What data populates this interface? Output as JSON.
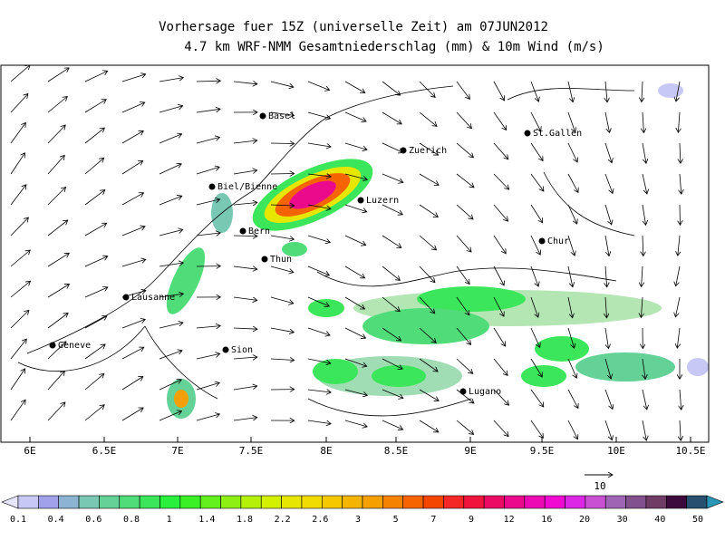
{
  "header": {
    "title": "Vorhersage fuer 15Z (universelle Zeit) am 07JUN2012",
    "subtitle": "4.7 km WRF-NMM Gesamtniederschlag (mm) & 10m Wind (m/s)"
  },
  "x_axis": {
    "labels": [
      "6E",
      "6.5E",
      "7E",
      "7.5E",
      "8E",
      "8.5E",
      "9E",
      "9.5E",
      "10E",
      "10.5E"
    ]
  },
  "cities": [
    {
      "label": "Basel"
    },
    {
      "label": "Zuerich"
    },
    {
      "label": "St.Gallen"
    },
    {
      "label": "Biel/Bienne"
    },
    {
      "label": "Luzern"
    },
    {
      "label": "Bern"
    },
    {
      "label": "Thun"
    },
    {
      "label": "Chur"
    },
    {
      "label": "Lausanne"
    },
    {
      "label": "Geneve"
    },
    {
      "label": "Sion"
    },
    {
      "label": "Lugano"
    }
  ],
  "wind_scale": {
    "label": "10"
  },
  "colorbar": {
    "labels": [
      "0.1",
      "0.4",
      "0.6",
      "0.8",
      "1",
      "1.4",
      "1.8",
      "2.2",
      "2.6",
      "3",
      "5",
      "7",
      "9",
      "12",
      "16",
      "20",
      "30",
      "40",
      "50"
    ],
    "colors": [
      "#e6e6fa",
      "#c8c8f5",
      "#a0a0eb",
      "#8cb4d2",
      "#78c8b4",
      "#64d296",
      "#50dc78",
      "#3ce65a",
      "#28f03c",
      "#3cf028",
      "#64f01e",
      "#8cf014",
      "#b4f00a",
      "#d2f000",
      "#e6e600",
      "#f0dc00",
      "#f5c800",
      "#f5b400",
      "#f5a000",
      "#f58200",
      "#f56400",
      "#f54600",
      "#f52828",
      "#f0143c",
      "#eb0a64",
      "#eb0a8c",
      "#eb0ab4",
      "#f00ad2",
      "#dc28e6",
      "#c850d2",
      "#a064b4",
      "#82508c",
      "#6e3c64",
      "#3c0a3c",
      "#28506e",
      "#2896b4"
    ]
  }
}
